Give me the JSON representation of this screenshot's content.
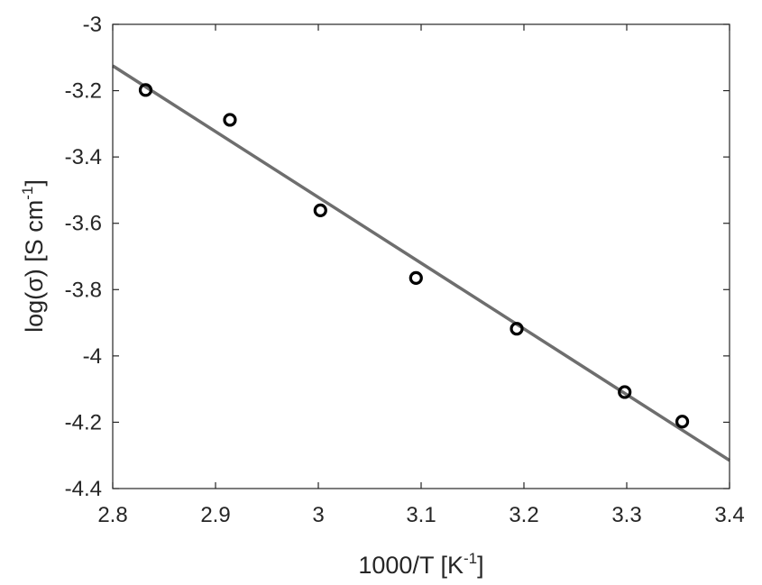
{
  "chart_data": {
    "type": "scatter",
    "xlabel": {
      "main": "1000/T [K",
      "sup": "-1",
      "end": "]"
    },
    "ylabel": {
      "main": "log(σ) [S cm",
      "sup": "-1",
      "end": "]"
    },
    "xlim": [
      2.8,
      3.4
    ],
    "ylim": [
      -4.4,
      -3.0
    ],
    "xticks": [
      2.8,
      2.9,
      3.0,
      3.1,
      3.2,
      3.3,
      3.4
    ],
    "xtick_labels": [
      "2.8",
      "2.9",
      "3",
      "3.1",
      "3.2",
      "3.3",
      "3.4"
    ],
    "yticks": [
      -3.0,
      -3.2,
      -3.4,
      -3.6,
      -3.8,
      -4.0,
      -4.2,
      -4.4
    ],
    "ytick_labels": [
      "-3",
      "-3.2",
      "-3.4",
      "-3.6",
      "-3.8",
      "-4",
      "-4.2",
      "-4.4"
    ],
    "grid": false,
    "series": [
      {
        "kind": "markers",
        "marker": "open-circle",
        "color": "#000000",
        "x": [
          2.832,
          2.914,
          3.002,
          3.095,
          3.193,
          3.298,
          3.354
        ],
        "y": [
          -3.198,
          -3.288,
          -3.561,
          -3.765,
          -3.918,
          -4.109,
          -4.198
        ]
      },
      {
        "kind": "fit-line",
        "color": "#6e6e6e",
        "x": [
          2.8,
          3.4
        ],
        "y": [
          -3.125,
          -4.315
        ]
      }
    ]
  }
}
